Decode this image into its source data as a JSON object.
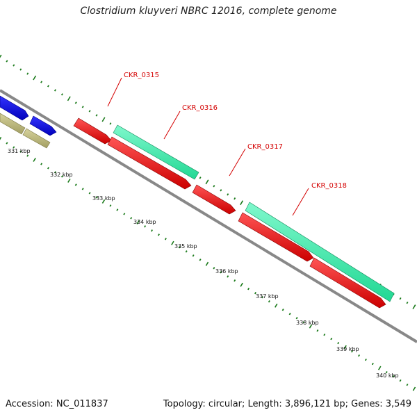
{
  "title": "Clostridium kluyveri NBRC 12016, complete genome",
  "footer": {
    "accession": "Accession: NC_011837",
    "topology": "Topology: circular; Length: 3,896,121 bp; Genes: 3,549"
  },
  "colors": {
    "forward_gene": "#44f0b0",
    "reverse_gene": "#ee1111",
    "blue_gene": "#0000ee",
    "olive_gene": "#bdb77c",
    "backbone": "#888888",
    "tick": "#1a7a1a",
    "label": "#d40000"
  },
  "scale": {
    "kbp_labels": [
      "331 kbp",
      "332 kbp",
      "333 kbp",
      "334 kbp",
      "335 kbp",
      "336 kbp",
      "337 kbp",
      "338 kbp",
      "339 kbp",
      "340 kbp"
    ]
  },
  "genes": [
    {
      "label": "CKR_0315"
    },
    {
      "label": "CKR_0316"
    },
    {
      "label": "CKR_0317"
    },
    {
      "label": "CKR_0318"
    }
  ]
}
